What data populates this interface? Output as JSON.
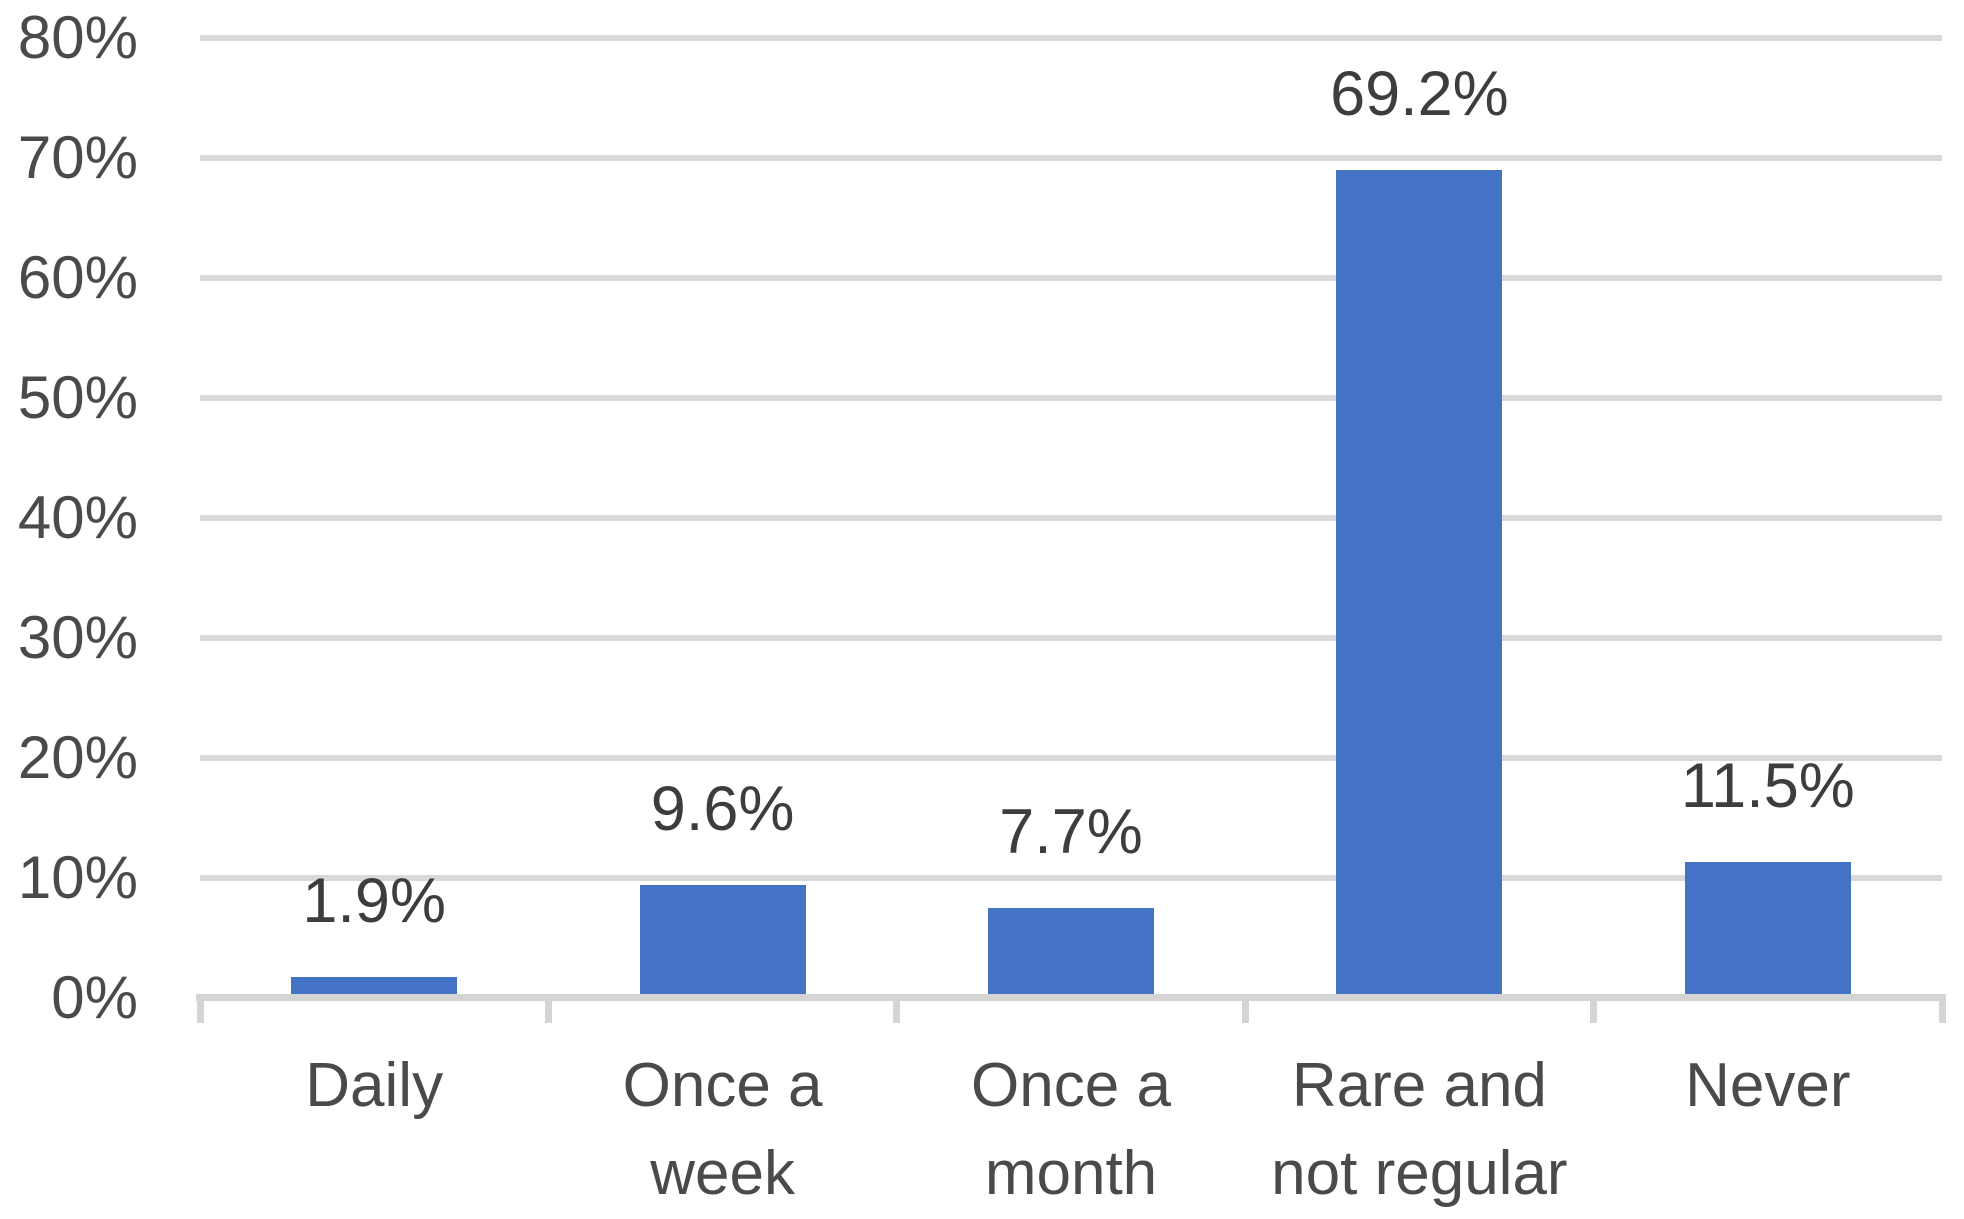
{
  "chart_data": {
    "type": "bar",
    "title": "",
    "xlabel": "",
    "ylabel": "",
    "categories": [
      "Daily",
      "Once a week",
      "Once a month",
      "Rare and not regular",
      "Never"
    ],
    "category_display_lines": [
      "Daily",
      "Once a\nweek",
      "Once a\nmonth",
      "Rare and\nnot regular",
      "Never"
    ],
    "values": [
      1.9,
      9.6,
      7.7,
      69.2,
      11.5
    ],
    "data_labels": [
      "1.9%",
      "9.6%",
      "7.7%",
      "69.2%",
      "11.5%"
    ],
    "y_tick_labels": [
      "0%",
      "10%",
      "20%",
      "30%",
      "40%",
      "50%",
      "60%",
      "70%",
      "80%"
    ],
    "ylim": [
      0,
      80
    ],
    "y_tick_step": 10,
    "grid": true,
    "legend": "none",
    "colors": {
      "bar_fill": "#4472c4",
      "gridline": "#d9d9d9",
      "axis_line": "#d4d4d4",
      "tick_mark": "#d4d4d4",
      "axis_text": "#4a4a4a",
      "data_label_text": "#3d3d3d",
      "background": "#ffffff"
    }
  }
}
